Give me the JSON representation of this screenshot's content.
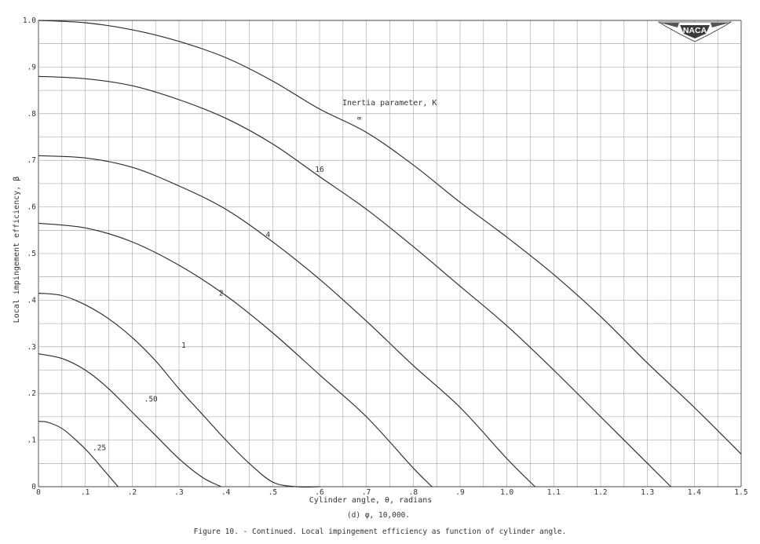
{
  "chart_data": {
    "type": "line",
    "title": "",
    "xlabel": "Cylinder angle, θ, radians",
    "ylabel": "Local impingement efficiency, β",
    "xlim": [
      0,
      1.5
    ],
    "ylim": [
      0,
      1.0
    ],
    "grid": true,
    "x_ticks": [
      "0",
      ".1",
      ".2",
      ".3",
      ".4",
      ".5",
      ".6",
      ".7",
      ".8",
      ".9",
      "1.0",
      "1.1",
      "1.2",
      "1.3",
      "1.4",
      "1.5"
    ],
    "y_ticks": [
      "0",
      ".1",
      ".2",
      ".3",
      ".4",
      ".5",
      ".6",
      ".7",
      ".8",
      ".9",
      "1.0"
    ],
    "legend_title": "Inertia parameter, K",
    "subcaption": "(d) φ, 10,000.",
    "caption": "Figure 10. - Continued.  Local impingement efficiency as function of cylinder angle.",
    "logo_text": "NACA",
    "series": [
      {
        "name": "∞",
        "x": [
          0,
          0.1,
          0.2,
          0.3,
          0.4,
          0.5,
          0.6,
          0.7,
          0.8,
          0.9,
          1.0,
          1.1,
          1.2,
          1.3,
          1.4,
          1.5
        ],
        "y": [
          1.0,
          0.995,
          0.98,
          0.955,
          0.92,
          0.87,
          0.81,
          0.76,
          0.69,
          0.61,
          0.535,
          0.455,
          0.365,
          0.265,
          0.17,
          0.07
        ]
      },
      {
        "name": "16",
        "x": [
          0,
          0.1,
          0.2,
          0.3,
          0.4,
          0.5,
          0.6,
          0.7,
          0.8,
          0.9,
          1.0,
          1.1,
          1.2,
          1.3,
          1.35
        ],
        "y": [
          0.88,
          0.875,
          0.86,
          0.83,
          0.79,
          0.735,
          0.665,
          0.595,
          0.515,
          0.43,
          0.345,
          0.25,
          0.15,
          0.05,
          0.0
        ]
      },
      {
        "name": "4",
        "x": [
          0,
          0.1,
          0.2,
          0.3,
          0.4,
          0.5,
          0.6,
          0.7,
          0.8,
          0.9,
          1.0,
          1.06
        ],
        "y": [
          0.71,
          0.705,
          0.685,
          0.645,
          0.595,
          0.525,
          0.445,
          0.355,
          0.26,
          0.17,
          0.06,
          0.0
        ]
      },
      {
        "name": "2",
        "x": [
          0,
          0.1,
          0.2,
          0.3,
          0.4,
          0.5,
          0.6,
          0.7,
          0.8,
          0.84
        ],
        "y": [
          0.565,
          0.555,
          0.525,
          0.475,
          0.41,
          0.33,
          0.24,
          0.15,
          0.04,
          0.0
        ]
      },
      {
        "name": "1",
        "x": [
          0,
          0.05,
          0.1,
          0.15,
          0.2,
          0.25,
          0.3,
          0.35,
          0.4,
          0.45,
          0.5,
          0.55,
          0.6
        ],
        "y": [
          0.415,
          0.41,
          0.39,
          0.36,
          0.32,
          0.27,
          0.21,
          0.155,
          0.1,
          0.05,
          0.01,
          0.0,
          0.0
        ]
      },
      {
        "name": ".50",
        "x": [
          0,
          0.05,
          0.1,
          0.15,
          0.2,
          0.25,
          0.3,
          0.35,
          0.39
        ],
        "y": [
          0.285,
          0.275,
          0.25,
          0.21,
          0.16,
          0.11,
          0.06,
          0.02,
          0.0
        ]
      },
      {
        "name": ".25",
        "x": [
          0,
          0.02,
          0.05,
          0.08,
          0.11,
          0.14,
          0.17
        ],
        "y": [
          0.14,
          0.138,
          0.125,
          0.1,
          0.07,
          0.035,
          0.0
        ]
      }
    ]
  }
}
